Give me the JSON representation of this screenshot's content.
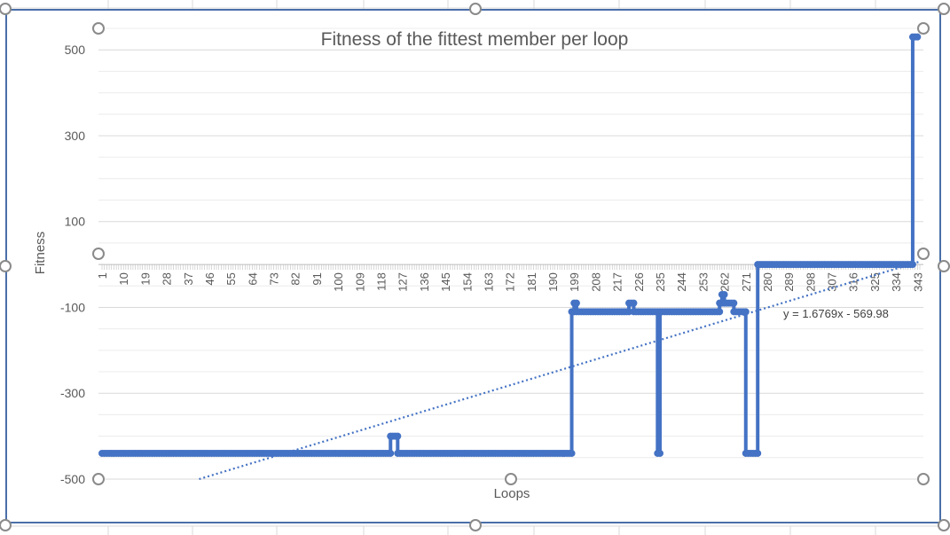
{
  "chart_data": {
    "type": "line",
    "title": "Fitness of the fittest member per loop",
    "xlabel": "Loops",
    "ylabel": "Fitness",
    "ylim": [
      -500,
      550
    ],
    "y_ticks": [
      500,
      300,
      100,
      -100,
      -300,
      -500
    ],
    "x_ticks": [
      "1",
      "10",
      "19",
      "28",
      "37",
      "46",
      "55",
      "64",
      "73",
      "82",
      "91",
      "100",
      "109",
      "118",
      "127",
      "136",
      "145",
      "154",
      "163",
      "172",
      "181",
      "190",
      "199",
      "208",
      "217",
      "226",
      "235",
      "244",
      "253",
      "262",
      "271",
      "280",
      "289",
      "298",
      "307",
      "316",
      "325",
      "334",
      "343"
    ],
    "n_points": 344,
    "grid": true,
    "series": [
      {
        "segments": [
          [
            1,
            -440
          ],
          [
            122,
            -440
          ],
          [
            122,
            -400
          ],
          [
            125,
            -400
          ],
          [
            125,
            -440
          ],
          [
            198,
            -440
          ],
          [
            198,
            -110
          ],
          [
            199,
            -110
          ],
          [
            199,
            -90
          ],
          [
            200,
            -90
          ],
          [
            200,
            -110
          ],
          [
            222,
            -110
          ],
          [
            222,
            -90
          ],
          [
            224,
            -90
          ],
          [
            224,
            -110
          ],
          [
            234,
            -110
          ],
          [
            234,
            -440
          ],
          [
            235,
            -440
          ],
          [
            235,
            -110
          ],
          [
            260,
            -110
          ],
          [
            260,
            -90
          ],
          [
            261,
            -90
          ],
          [
            261,
            -70
          ],
          [
            262,
            -70
          ],
          [
            262,
            -90
          ],
          [
            266,
            -90
          ],
          [
            266,
            -110
          ],
          [
            271,
            -110
          ],
          [
            271,
            -440
          ],
          [
            276,
            -440
          ],
          [
            276,
            0
          ],
          [
            341,
            0
          ],
          [
            341,
            530
          ],
          [
            343,
            530
          ]
        ],
        "color": "#4472c4"
      }
    ],
    "trendline": {
      "label": "y = 1.6769x - 569.98",
      "slope": 1.6769,
      "intercept": -569.98,
      "color": "#4472c4"
    }
  }
}
